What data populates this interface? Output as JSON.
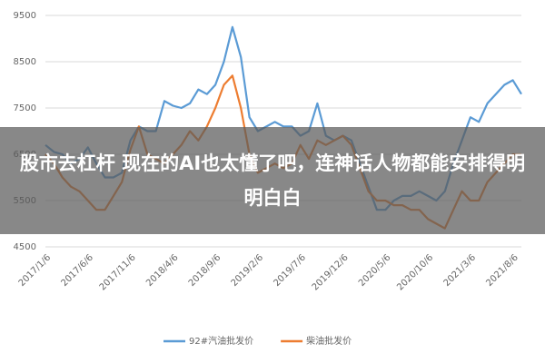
{
  "chart_data": {
    "type": "line",
    "categories": [
      "2017/1/6",
      null,
      null,
      null,
      null,
      "2017/6/6",
      null,
      null,
      null,
      null,
      "2017/11/6",
      null,
      null,
      null,
      null,
      "2018/4/6",
      null,
      null,
      null,
      null,
      "2018/9/6",
      null,
      null,
      null,
      null,
      "2019/2/6",
      null,
      null,
      null,
      null,
      "2019/7/6",
      null,
      null,
      null,
      null,
      "2019/12/6",
      null,
      null,
      null,
      null,
      "2020/5/6",
      null,
      null,
      null,
      null,
      "2020/10/6",
      null,
      null,
      null,
      null,
      "2021/3/6",
      null,
      null,
      null,
      null,
      "2021/8/6",
      null
    ],
    "series": [
      {
        "name": "92#汽油批发价",
        "color": "#5b9bd5",
        "values": [
          6700,
          6550,
          6500,
          6300,
          6400,
          6650,
          6300,
          6000,
          6000,
          6100,
          6800,
          7100,
          7000,
          7000,
          7650,
          7550,
          7500,
          7600,
          7900,
          7800,
          8000,
          8500,
          9250,
          8600,
          7300,
          7000,
          7100,
          7200,
          7100,
          7100,
          6900,
          7000,
          7600,
          6900,
          6800,
          6900,
          6800,
          6300,
          5800,
          5300,
          5300,
          5500,
          5600,
          5600,
          5700,
          5600,
          5500,
          5700,
          6300,
          6800,
          7300,
          7200,
          7600,
          7800,
          8000,
          8100,
          7800
        ]
      },
      {
        "name": "柴油批发价",
        "color": "#ed7d31",
        "values": [
          6500,
          6300,
          6000,
          5800,
          5700,
          5500,
          5300,
          5300,
          5600,
          5900,
          6600,
          7100,
          6500,
          6400,
          6300,
          6500,
          6700,
          7000,
          6800,
          7100,
          7500,
          8000,
          8200,
          7500,
          6500,
          6100,
          6200,
          6300,
          6200,
          6300,
          6700,
          6400,
          6800,
          6700,
          6800,
          6900,
          6700,
          6200,
          5700,
          5500,
          5500,
          5400,
          5400,
          5300,
          5300,
          5100,
          5000,
          4900,
          5300,
          5700,
          5500,
          5500,
          5900,
          6100,
          6300,
          6500,
          6500
        ]
      }
    ],
    "ylim": [
      4500,
      9500
    ],
    "yticks": [
      4500,
      5500,
      6500,
      7500,
      8500,
      9500
    ],
    "grid": true
  },
  "overlay": {
    "caption": "股市去杠杆 现在的AI也太懂了吧，连神话人物都能安排得明明白白"
  }
}
